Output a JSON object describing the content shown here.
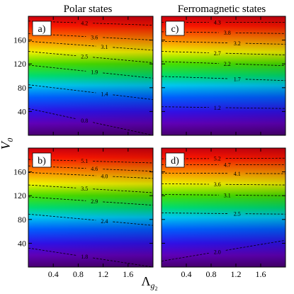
{
  "figure": {
    "col_titles": [
      "Polar states",
      "Ferromagnetic states"
    ],
    "ylabel": "V",
    "ylabel_sub": "0",
    "xlabel": "Λ",
    "xlabel_sub": "g",
    "xlabel_subsub": "2"
  },
  "chart_data": [
    {
      "type": "heatmap",
      "panel_label": "a)",
      "column": "Polar states",
      "xlim": [
        0,
        2.0
      ],
      "ylim": [
        0,
        200
      ],
      "x_ticks": [
        "0.4",
        "0.8",
        "1.2",
        "1.6"
      ],
      "y_ticks": [
        "40",
        "80",
        "120",
        "160"
      ],
      "colormap": "rainbow",
      "contours": [
        {
          "label": "4.2",
          "y_left": 192,
          "y_right": 185
        },
        {
          "label": "3.6",
          "y_left": 171,
          "y_right": 160
        },
        {
          "label": "3.1",
          "y_left": 158,
          "y_right": 143
        },
        {
          "label": "2.5",
          "y_left": 141,
          "y_right": 122
        },
        {
          "label": "1.9",
          "y_left": 118,
          "y_right": 96
        },
        {
          "label": "1.4",
          "y_left": 85,
          "y_right": 60
        },
        {
          "label": "0.8",
          "y_left": 45,
          "y_right": 0
        }
      ]
    },
    {
      "type": "heatmap",
      "panel_label": "c)",
      "column": "Ferromagnetic states",
      "xlim": [
        0,
        2.0
      ],
      "ylim": [
        0,
        200
      ],
      "x_ticks": [
        "0.4",
        "0.8",
        "1.2",
        "1.6"
      ],
      "y_ticks": [
        "40",
        "80",
        "120",
        "160"
      ],
      "colormap": "rainbow",
      "contours": [
        {
          "label": "4.3",
          "y_left": 190,
          "y_right": 190
        },
        {
          "label": "3.8",
          "y_left": 174,
          "y_right": 171
        },
        {
          "label": "3.2",
          "y_left": 158,
          "y_right": 153
        },
        {
          "label": "2.7",
          "y_left": 141,
          "y_right": 135
        },
        {
          "label": "2.2",
          "y_left": 124,
          "y_right": 117
        },
        {
          "label": "1.7",
          "y_left": 99,
          "y_right": 92
        },
        {
          "label": "1.2",
          "y_left": 48,
          "y_right": 45
        }
      ]
    },
    {
      "type": "heatmap",
      "panel_label": "b)",
      "column": "Polar states",
      "xlim": [
        0,
        2.0
      ],
      "ylim": [
        0,
        200
      ],
      "x_ticks": [
        "0.4",
        "0.8",
        "1.2",
        "1.6"
      ],
      "y_ticks": [
        "40",
        "80",
        "120",
        "160"
      ],
      "colormap": "rainbow",
      "contours": [
        {
          "label": "5.1",
          "y_left": 181,
          "y_right": 175
        },
        {
          "label": "4.6",
          "y_left": 170,
          "y_right": 161
        },
        {
          "label": "4.0",
          "y_left": 159,
          "y_right": 149
        },
        {
          "label": "3.5",
          "y_left": 138,
          "y_right": 125
        },
        {
          "label": "2.9",
          "y_left": 118,
          "y_right": 104
        },
        {
          "label": "2.4",
          "y_left": 89,
          "y_right": 70
        },
        {
          "label": "1.8",
          "y_left": 32,
          "y_right": 0
        }
      ]
    },
    {
      "type": "heatmap",
      "panel_label": "d)",
      "column": "Ferromagnetic states",
      "xlim": [
        0,
        2.0
      ],
      "ylim": [
        0,
        200
      ],
      "x_ticks": [
        "0.4",
        "0.8",
        "1.2",
        "1.6"
      ],
      "y_ticks": [
        "40",
        "80",
        "120",
        "160"
      ],
      "colormap": "rainbow",
      "contours": [
        {
          "label": "5.2",
          "y_left": 182,
          "y_right": 183
        },
        {
          "label": "4.7",
          "y_left": 172,
          "y_right": 172
        },
        {
          "label": "4.1",
          "y_left": 158,
          "y_right": 157
        },
        {
          "label": "3.6",
          "y_left": 140,
          "y_right": 138
        },
        {
          "label": "3.1",
          "y_left": 122,
          "y_right": 120
        },
        {
          "label": "2.5",
          "y_left": 91,
          "y_right": 89
        },
        {
          "label": "2.0",
          "y_left": 10,
          "y_right": 45
        }
      ]
    }
  ]
}
